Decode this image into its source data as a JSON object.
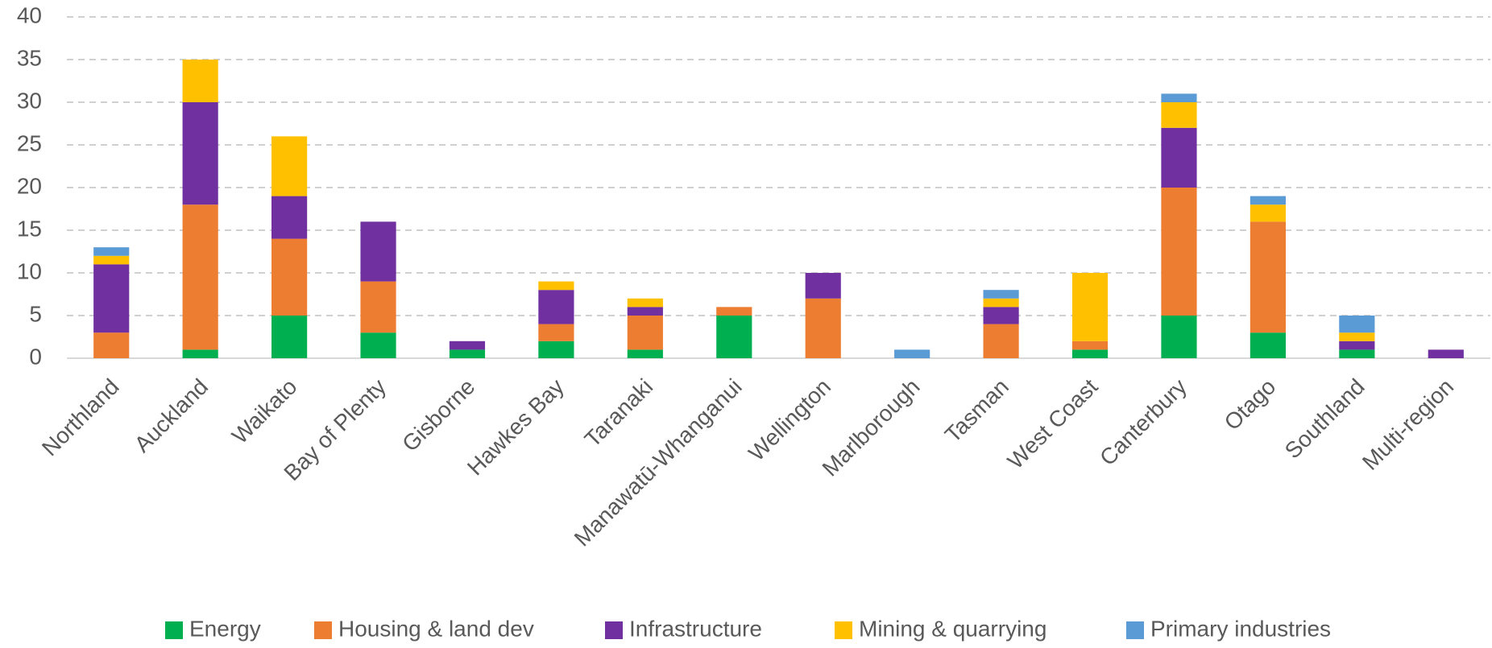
{
  "chart_data": {
    "type": "stacked_bar",
    "categories": [
      "Northland",
      "Auckland",
      "Waikato",
      "Bay of Plenty",
      "Gisborne",
      "Hawkes Bay",
      "Taranaki",
      "Manawatū-Whanganui",
      "Wellington",
      "Marlborough",
      "Tasman",
      "West Coast",
      "Canterbury",
      "Otago",
      "Southland",
      "Multi-region"
    ],
    "series": [
      {
        "name": "Energy",
        "color": "#00b050",
        "values": [
          0,
          1,
          5,
          3,
          1,
          2,
          1,
          5,
          0,
          0,
          0,
          1,
          5,
          3,
          1,
          0
        ]
      },
      {
        "name": "Housing & land dev",
        "color": "#ed7d31",
        "values": [
          3,
          17,
          9,
          6,
          0,
          2,
          4,
          1,
          7,
          0,
          4,
          1,
          15,
          13,
          0,
          0
        ]
      },
      {
        "name": "Infrastructure",
        "color": "#7030a0",
        "values": [
          8,
          12,
          5,
          7,
          1,
          4,
          1,
          0,
          3,
          0,
          2,
          0,
          7,
          0,
          1,
          1
        ]
      },
      {
        "name": "Mining & quarrying",
        "color": "#ffc000",
        "values": [
          1,
          5,
          7,
          0,
          0,
          1,
          1,
          0,
          0,
          0,
          1,
          8,
          3,
          2,
          1,
          0
        ]
      },
      {
        "name": "Primary industries",
        "color": "#5b9bd5",
        "values": [
          1,
          0,
          0,
          0,
          0,
          0,
          0,
          0,
          0,
          1,
          1,
          0,
          1,
          1,
          2,
          0
        ]
      }
    ],
    "ylim": [
      0,
      40
    ],
    "yticks": [
      0,
      5,
      10,
      15,
      20,
      25,
      30,
      35,
      40
    ],
    "grid": true,
    "legend": "bottom"
  }
}
